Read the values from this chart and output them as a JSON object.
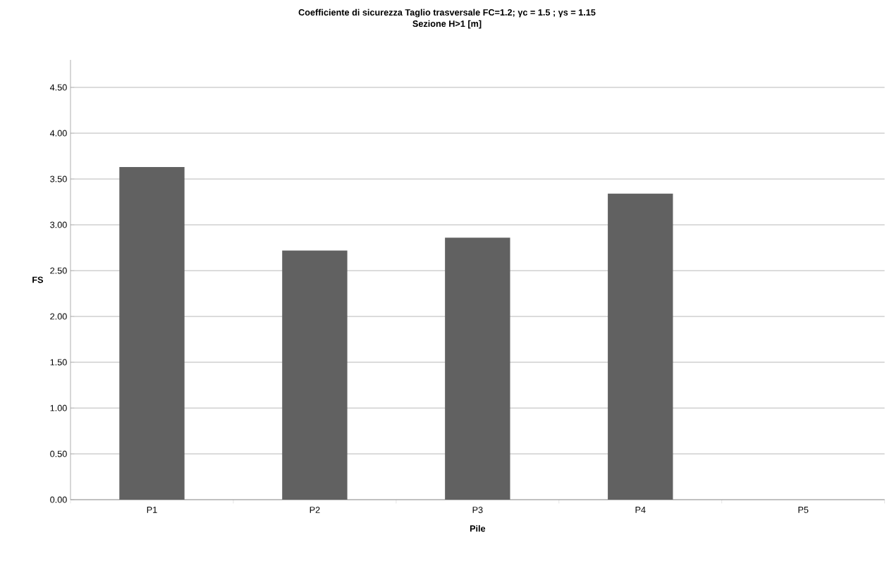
{
  "chart_data": {
    "type": "bar",
    "title": "Coefficiente di sicurezza Taglio trasversale   FC=1.2; γc = 1.5 ; γs = 1.15",
    "subtitle": "Sezione H>1 [m]",
    "xlabel": "Pile",
    "ylabel": "FS",
    "categories": [
      "P1",
      "P2",
      "P3",
      "P4",
      "P5"
    ],
    "values": [
      3.63,
      2.72,
      2.86,
      3.34,
      null
    ],
    "color": "#616161",
    "ylim": [
      0,
      4.8
    ],
    "yticks": [
      {
        "value": 0,
        "label": "0.00"
      },
      {
        "value": 0.5,
        "label": "0.50"
      },
      {
        "value": 1,
        "label": "1.00"
      },
      {
        "value": 1.5,
        "label": "1.50"
      },
      {
        "value": 2,
        "label": "2.00"
      },
      {
        "value": 2.5,
        "label": "2.50"
      },
      {
        "value": 3,
        "label": "3.00"
      },
      {
        "value": 3.5,
        "label": "3.50"
      },
      {
        "value": 4,
        "label": "4.00"
      },
      {
        "value": 4.5,
        "label": "4.50"
      }
    ],
    "grid": "y"
  }
}
